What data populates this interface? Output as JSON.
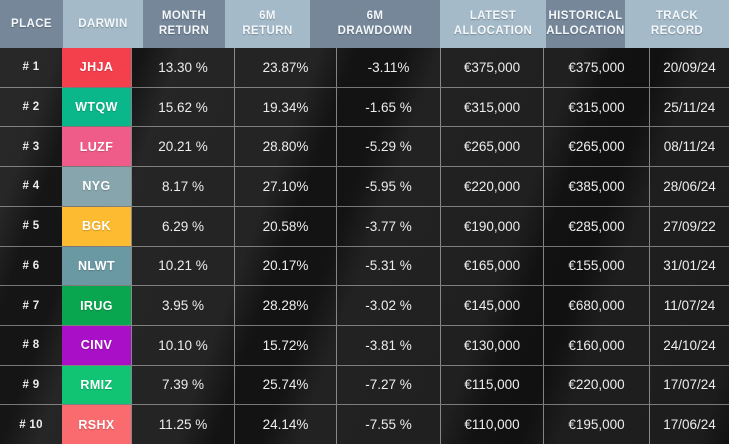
{
  "colors": {
    "header_dark": "#76879a",
    "header_light": "#a4bac8",
    "body_background": "#202020",
    "body_text": "#ededed"
  },
  "header": {
    "columns": [
      {
        "id": "place",
        "line1": "PLACE",
        "line2": "",
        "shade": "dark"
      },
      {
        "id": "darwin",
        "line1": "DARWIN",
        "line2": "",
        "shade": "light"
      },
      {
        "id": "month-return",
        "line1": "MONTH",
        "line2": "RETURN",
        "shade": "dark"
      },
      {
        "id": "six-month-return",
        "line1": "6M",
        "line2": "RETURN",
        "shade": "light"
      },
      {
        "id": "six-month-drawdown",
        "line1": "6M",
        "line2": "DRAWDOWN",
        "shade": "dark"
      },
      {
        "id": "latest-allocation",
        "line1": "LATEST",
        "line2": "ALLOCATION",
        "shade": "light"
      },
      {
        "id": "historical-allocation",
        "line1": "HISTORICAL",
        "line2": "ALLOCATION",
        "shade": "dark"
      },
      {
        "id": "track-record",
        "line1": "TRACK",
        "line2": "RECORD",
        "shade": "light"
      }
    ]
  },
  "rows": [
    {
      "place": "# 1",
      "darwin": "JHJA",
      "badge_color": "#f43f4d",
      "month_return": "13.30 %",
      "six_m_return": "23.87%",
      "six_m_drawdown": "-3.11%",
      "latest_allocation": "€375,000",
      "historical_allocation": "€375,000",
      "track_record": "20/09/24"
    },
    {
      "place": "# 2",
      "darwin": "WTQW",
      "badge_color": "#0ab78a",
      "month_return": "15.62 %",
      "six_m_return": "19.34%",
      "six_m_drawdown": "-1.65 %",
      "latest_allocation": "€315,000",
      "historical_allocation": "€315,000",
      "track_record": "25/11/24"
    },
    {
      "place": "# 3",
      "darwin": "LUZF",
      "badge_color": "#f05c8a",
      "month_return": "20.21 %",
      "six_m_return": "28.80%",
      "six_m_drawdown": "-5.29 %",
      "latest_allocation": "€265,000",
      "historical_allocation": "€265,000",
      "track_record": "08/11/24"
    },
    {
      "place": "# 4",
      "darwin": "NYG",
      "badge_color": "#86a5ad",
      "month_return": "8.17 %",
      "six_m_return": "27.10%",
      "six_m_drawdown": "-5.95 %",
      "latest_allocation": "€220,000",
      "historical_allocation": "€385,000",
      "track_record": "28/06/24"
    },
    {
      "place": "# 5",
      "darwin": "BGK",
      "badge_color": "#fcbb31",
      "month_return": "6.29 %",
      "six_m_return": "20.58%",
      "six_m_drawdown": "-3.77 %",
      "latest_allocation": "€190,000",
      "historical_allocation": "€285,000",
      "track_record": "27/09/22"
    },
    {
      "place": "# 6",
      "darwin": "NLWT",
      "badge_color": "#6a99a3",
      "month_return": "10.21 %",
      "six_m_return": "20.17%",
      "six_m_drawdown": "-5.31 %",
      "latest_allocation": "€165,000",
      "historical_allocation": "€155,000",
      "track_record": "31/01/24"
    },
    {
      "place": "# 7",
      "darwin": "IRUG",
      "badge_color": "#0aa64f",
      "month_return": "3.95 %",
      "six_m_return": "28.28%",
      "six_m_drawdown": "-3.02 %",
      "latest_allocation": "€145,000",
      "historical_allocation": "€680,000",
      "track_record": "11/07/24"
    },
    {
      "place": "# 8",
      "darwin": "CINV",
      "badge_color": "#a90fc6",
      "month_return": "10.10 %",
      "six_m_return": "15.72%",
      "six_m_drawdown": "-3.81 %",
      "latest_allocation": "€130,000",
      "historical_allocation": "€160,000",
      "track_record": "24/10/24"
    },
    {
      "place": "# 9",
      "darwin": "RMIZ",
      "badge_color": "#10c474",
      "month_return": "7.39 %",
      "six_m_return": "25.74%",
      "six_m_drawdown": "-7.27 %",
      "latest_allocation": "€115,000",
      "historical_allocation": "€220,000",
      "track_record": "17/07/24"
    },
    {
      "place": "# 10",
      "darwin": "RSHX",
      "badge_color": "#f96b6e",
      "month_return": "11.25 %",
      "six_m_return": "24.14%",
      "six_m_drawdown": "-7.55 %",
      "latest_allocation": "€110,000",
      "historical_allocation": "€195,000",
      "track_record": "17/06/24"
    }
  ]
}
